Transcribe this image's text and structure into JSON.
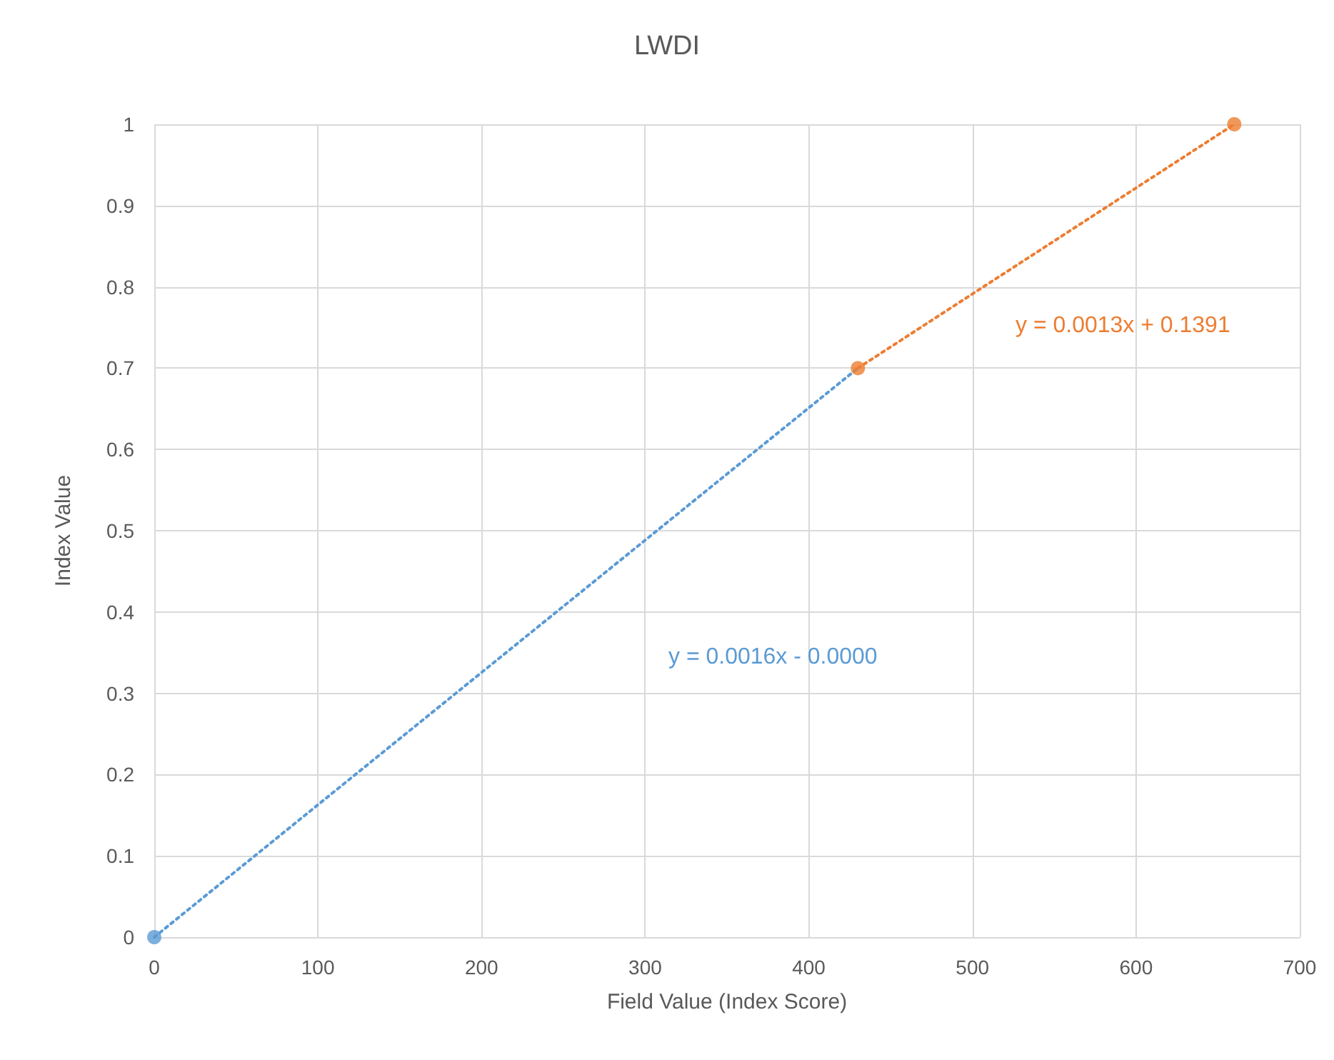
{
  "chart_data": {
    "type": "scatter",
    "title": "LWDI",
    "xlabel": "Field Value (Index Score)",
    "ylabel": "Index Value",
    "series": [
      {
        "color": "#5b9bd5",
        "x": [
          0
        ],
        "values": [
          0
        ],
        "marker": "circle"
      },
      {
        "color": "#ed7d31",
        "x": [
          430,
          660
        ],
        "values": [
          0.7,
          1
        ],
        "marker": "circle"
      },
      {
        "type": "line",
        "color": "#5b9bd5",
        "x": [
          0,
          430
        ],
        "values": [
          0,
          0.7
        ],
        "line_style": "dotted",
        "marker": "none"
      },
      {
        "type": "line",
        "color": "#ed7d31",
        "x": [
          430,
          660
        ],
        "values": [
          0.7,
          1
        ],
        "line_style": "dotted",
        "marker": "none"
      }
    ],
    "annotations": [
      "y = 0.0016x - 0.0000",
      "y = 0.0013x + 0.1391"
    ],
    "xlim": [
      0,
      700
    ],
    "xticks": [
      0,
      100,
      200,
      300,
      400,
      500,
      600,
      700
    ],
    "ylim": [
      0,
      1
    ],
    "yticks": [
      0,
      0.1,
      0.2,
      0.3,
      0.4,
      0.5,
      0.6,
      0.7,
      0.8,
      0.9,
      1
    ],
    "grid": true
  }
}
